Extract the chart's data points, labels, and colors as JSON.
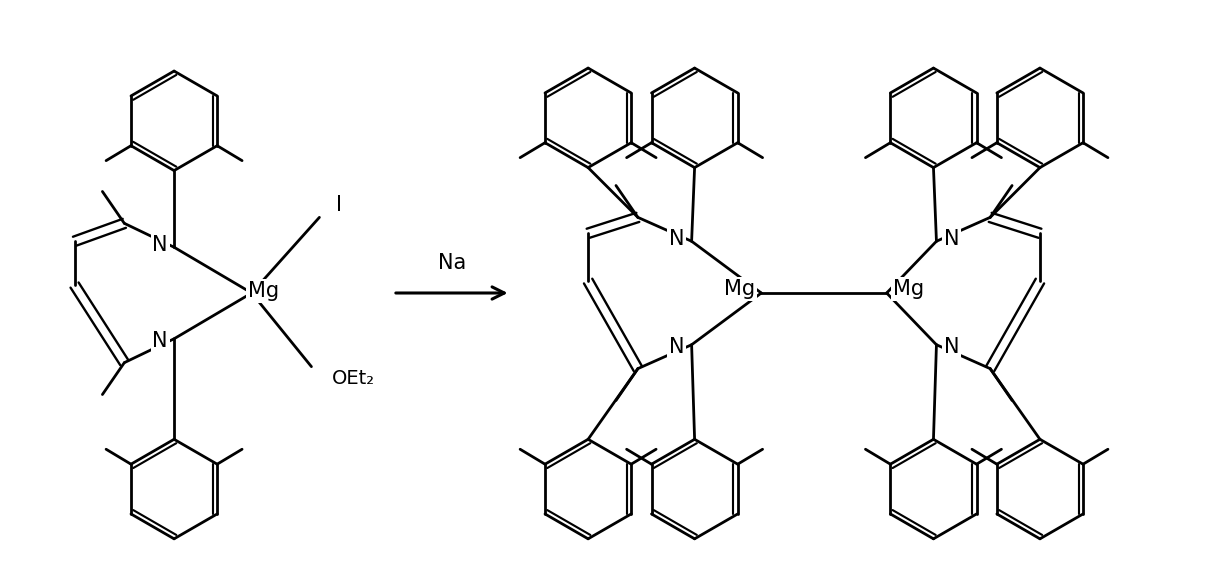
{
  "bg_color": "#ffffff",
  "line_color": "#000000",
  "lw": 2.0,
  "lw_thin": 1.7,
  "arrow_label": "Na",
  "label_I": "I",
  "label_OEt2": "OEt₂",
  "label_Mg": "Mg",
  "label_N": "N",
  "fs": 14
}
